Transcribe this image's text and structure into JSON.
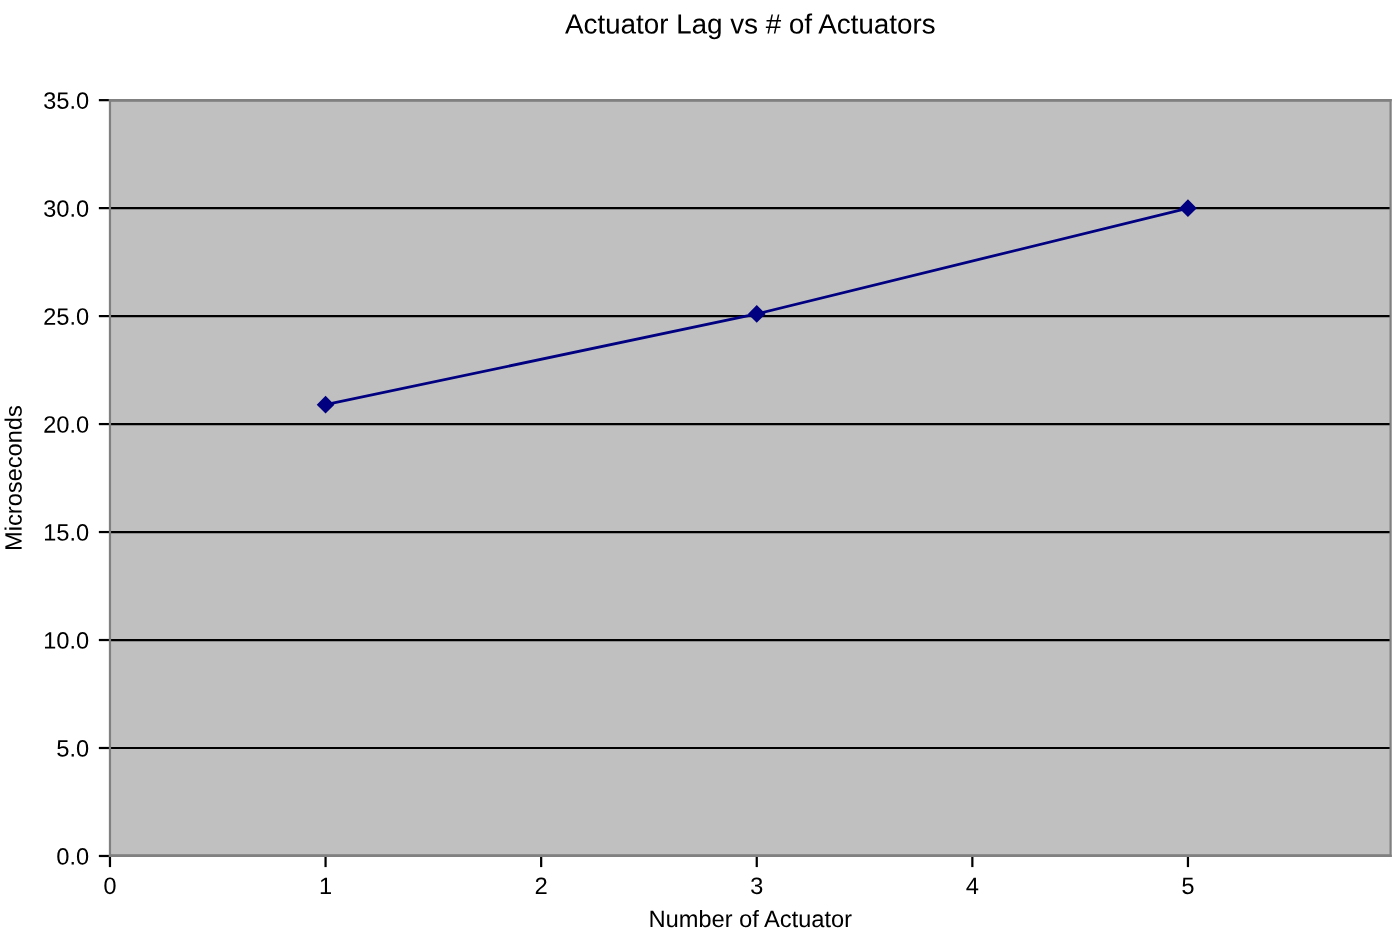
{
  "chart_data": {
    "type": "line",
    "title": "Actuator Lag vs # of Actuators",
    "xlabel": "Number of Actuator",
    "ylabel": "Microseconds",
    "x": [
      1,
      3,
      5
    ],
    "series": [
      {
        "color": "#000080",
        "values": [
          20.9,
          25.1,
          30.0
        ]
      }
    ],
    "xlim": [
      0,
      5.94
    ],
    "xticks": [
      0,
      1,
      2,
      3,
      4,
      5
    ],
    "ylim": [
      0,
      35
    ],
    "yticks": [
      {
        "value": 0,
        "label": "0.0"
      },
      {
        "value": 5,
        "label": "5.0"
      },
      {
        "value": 10,
        "label": "10.0"
      },
      {
        "value": 15,
        "label": "15.0"
      },
      {
        "value": 20,
        "label": "20.0"
      },
      {
        "value": 25,
        "label": "25.0"
      },
      {
        "value": 30,
        "label": "30.0"
      },
      {
        "value": 35,
        "label": "35.0"
      }
    ],
    "grid": "y",
    "marker": "diamond",
    "line_style": "solid",
    "legend": false
  }
}
